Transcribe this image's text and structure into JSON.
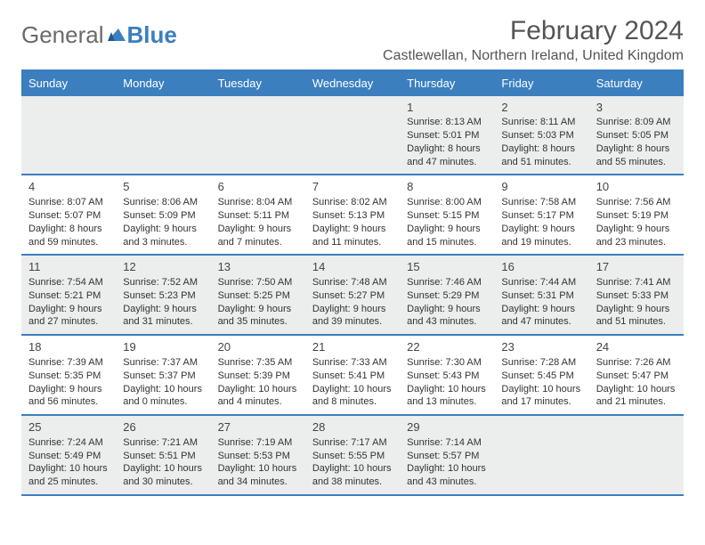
{
  "brand": {
    "part1": "General",
    "part2": "Blue"
  },
  "title": "February 2024",
  "location": "Castlewellan, Northern Ireland, United Kingdom",
  "colors": {
    "accent": "#3b7fbf",
    "shade": "#eceded",
    "text": "#333333",
    "title": "#555555",
    "background": "#ffffff"
  },
  "day_headers": [
    "Sunday",
    "Monday",
    "Tuesday",
    "Wednesday",
    "Thursday",
    "Friday",
    "Saturday"
  ],
  "label_sunrise": "Sunrise: ",
  "label_sunset": "Sunset: ",
  "label_daylight": "Daylight: ",
  "weeks": [
    [
      {
        "blank": true
      },
      {
        "blank": true
      },
      {
        "blank": true
      },
      {
        "blank": true
      },
      {
        "num": "1",
        "sunrise": "8:13 AM",
        "sunset": "5:01 PM",
        "daylight": "8 hours and 47 minutes."
      },
      {
        "num": "2",
        "sunrise": "8:11 AM",
        "sunset": "5:03 PM",
        "daylight": "8 hours and 51 minutes."
      },
      {
        "num": "3",
        "sunrise": "8:09 AM",
        "sunset": "5:05 PM",
        "daylight": "8 hours and 55 minutes."
      }
    ],
    [
      {
        "num": "4",
        "sunrise": "8:07 AM",
        "sunset": "5:07 PM",
        "daylight": "8 hours and 59 minutes."
      },
      {
        "num": "5",
        "sunrise": "8:06 AM",
        "sunset": "5:09 PM",
        "daylight": "9 hours and 3 minutes."
      },
      {
        "num": "6",
        "sunrise": "8:04 AM",
        "sunset": "5:11 PM",
        "daylight": "9 hours and 7 minutes."
      },
      {
        "num": "7",
        "sunrise": "8:02 AM",
        "sunset": "5:13 PM",
        "daylight": "9 hours and 11 minutes."
      },
      {
        "num": "8",
        "sunrise": "8:00 AM",
        "sunset": "5:15 PM",
        "daylight": "9 hours and 15 minutes."
      },
      {
        "num": "9",
        "sunrise": "7:58 AM",
        "sunset": "5:17 PM",
        "daylight": "9 hours and 19 minutes."
      },
      {
        "num": "10",
        "sunrise": "7:56 AM",
        "sunset": "5:19 PM",
        "daylight": "9 hours and 23 minutes."
      }
    ],
    [
      {
        "num": "11",
        "sunrise": "7:54 AM",
        "sunset": "5:21 PM",
        "daylight": "9 hours and 27 minutes."
      },
      {
        "num": "12",
        "sunrise": "7:52 AM",
        "sunset": "5:23 PM",
        "daylight": "9 hours and 31 minutes."
      },
      {
        "num": "13",
        "sunrise": "7:50 AM",
        "sunset": "5:25 PM",
        "daylight": "9 hours and 35 minutes."
      },
      {
        "num": "14",
        "sunrise": "7:48 AM",
        "sunset": "5:27 PM",
        "daylight": "9 hours and 39 minutes."
      },
      {
        "num": "15",
        "sunrise": "7:46 AM",
        "sunset": "5:29 PM",
        "daylight": "9 hours and 43 minutes."
      },
      {
        "num": "16",
        "sunrise": "7:44 AM",
        "sunset": "5:31 PM",
        "daylight": "9 hours and 47 minutes."
      },
      {
        "num": "17",
        "sunrise": "7:41 AM",
        "sunset": "5:33 PM",
        "daylight": "9 hours and 51 minutes."
      }
    ],
    [
      {
        "num": "18",
        "sunrise": "7:39 AM",
        "sunset": "5:35 PM",
        "daylight": "9 hours and 56 minutes."
      },
      {
        "num": "19",
        "sunrise": "7:37 AM",
        "sunset": "5:37 PM",
        "daylight": "10 hours and 0 minutes."
      },
      {
        "num": "20",
        "sunrise": "7:35 AM",
        "sunset": "5:39 PM",
        "daylight": "10 hours and 4 minutes."
      },
      {
        "num": "21",
        "sunrise": "7:33 AM",
        "sunset": "5:41 PM",
        "daylight": "10 hours and 8 minutes."
      },
      {
        "num": "22",
        "sunrise": "7:30 AM",
        "sunset": "5:43 PM",
        "daylight": "10 hours and 13 minutes."
      },
      {
        "num": "23",
        "sunrise": "7:28 AM",
        "sunset": "5:45 PM",
        "daylight": "10 hours and 17 minutes."
      },
      {
        "num": "24",
        "sunrise": "7:26 AM",
        "sunset": "5:47 PM",
        "daylight": "10 hours and 21 minutes."
      }
    ],
    [
      {
        "num": "25",
        "sunrise": "7:24 AM",
        "sunset": "5:49 PM",
        "daylight": "10 hours and 25 minutes."
      },
      {
        "num": "26",
        "sunrise": "7:21 AM",
        "sunset": "5:51 PM",
        "daylight": "10 hours and 30 minutes."
      },
      {
        "num": "27",
        "sunrise": "7:19 AM",
        "sunset": "5:53 PM",
        "daylight": "10 hours and 34 minutes."
      },
      {
        "num": "28",
        "sunrise": "7:17 AM",
        "sunset": "5:55 PM",
        "daylight": "10 hours and 38 minutes."
      },
      {
        "num": "29",
        "sunrise": "7:14 AM",
        "sunset": "5:57 PM",
        "daylight": "10 hours and 43 minutes."
      },
      {
        "blank": true
      },
      {
        "blank": true
      }
    ]
  ]
}
